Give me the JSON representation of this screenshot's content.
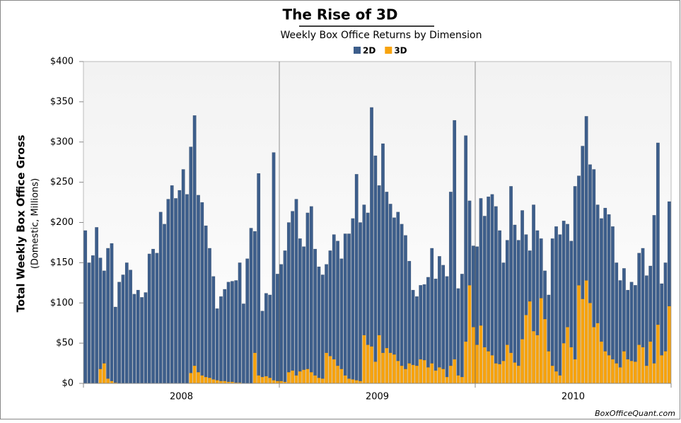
{
  "chart_data": {
    "type": "stacked_bar",
    "title": "The Rise of 3D",
    "subtitle": "Weekly Box Office Returns by Dimension",
    "y_label": "Total Weekly Box Office Gross",
    "y_sublabel": "(Domestic, Millions)",
    "credit": "BoxOfficeQuant.com",
    "x_group_labels": [
      "2008",
      "2009",
      "2010"
    ],
    "categories": [
      null,
      null,
      null,
      null,
      null,
      null,
      null,
      null,
      null,
      null,
      null,
      null,
      null,
      null,
      null,
      null,
      null,
      null,
      null,
      null,
      null,
      null,
      null,
      null,
      null,
      null,
      null,
      null,
      null,
      null,
      null,
      null,
      null,
      null,
      null,
      null,
      null,
      null,
      null,
      null,
      null,
      null,
      null,
      null,
      null,
      null,
      null,
      null,
      null,
      null,
      null,
      null,
      null,
      null,
      null,
      null,
      null,
      null,
      null,
      null,
      null,
      null,
      null,
      null,
      null,
      null,
      null,
      null,
      null,
      null,
      null,
      null,
      null,
      null,
      null,
      null,
      null,
      null,
      null,
      null,
      null,
      null,
      null,
      null,
      null,
      null,
      null,
      null,
      null,
      null,
      null,
      null,
      null,
      null,
      null,
      null,
      null,
      null,
      null,
      null,
      null,
      null,
      null,
      null,
      null,
      null,
      null,
      null,
      null,
      null,
      null,
      null,
      null,
      null,
      null,
      null,
      null,
      null,
      null,
      null,
      null,
      null,
      null,
      null,
      null,
      null,
      null,
      null,
      null,
      null,
      null,
      null,
      null,
      null,
      null,
      null,
      null,
      null,
      null,
      null,
      null,
      null,
      null,
      null,
      null,
      null,
      null,
      null,
      null,
      null,
      null,
      null,
      null,
      null,
      null,
      null
    ],
    "series": [
      {
        "name": "2D",
        "color": "#3d5e8b",
        "values": [
          190,
          150,
          159,
          194,
          138,
          115,
          162,
          171,
          94,
          126,
          135,
          150,
          141,
          111,
          116,
          107,
          113,
          161,
          167,
          162,
          213,
          198,
          229,
          246,
          230,
          240,
          266,
          235,
          281,
          311,
          220,
          215,
          188,
          161,
          128,
          89,
          105,
          114,
          124,
          125,
          127,
          149,
          99,
          155,
          193,
          151,
          251,
          82,
          103,
          103,
          283,
          133,
          145,
          163,
          186,
          198,
          219,
          165,
          153,
          194,
          206,
          157,
          138,
          129,
          110,
          131,
          155,
          155,
          137,
          176,
          180,
          200,
          256,
          197,
          162,
          164,
          297,
          256,
          186,
          260,
          194,
          185,
          170,
          185,
          176,
          166,
          127,
          93,
          86,
          92,
          94,
          112,
          143,
          114,
          138,
          129,
          125,
          216,
          297,
          108,
          128,
          256,
          105,
          101,
          122,
          158,
          163,
          192,
          200,
          195,
          166,
          122,
          130,
          207,
          171,
          156,
          160,
          100,
          63,
          157,
          130,
          74,
          60,
          70,
          158,
          180,
          175,
          152,
          128,
          132,
          215,
          136,
          190,
          204,
          172,
          196,
          147,
          153,
          178,
          175,
          165,
          125,
          108,
          103,
          86,
          98,
          95,
          114,
          123,
          112,
          94,
          184,
          226,
          89,
          110,
          130
        ]
      },
      {
        "name": "3D",
        "color": "#f7a30e",
        "values": [
          0,
          0,
          0,
          0,
          18,
          25,
          6,
          3,
          1,
          0,
          0,
          0,
          0,
          0,
          0,
          0,
          0,
          0,
          0,
          0,
          0,
          0,
          0,
          0,
          0,
          0,
          0,
          0,
          13,
          22,
          14,
          10,
          8,
          7,
          5,
          4,
          3,
          3,
          2,
          2,
          1,
          1,
          0,
          0,
          0,
          38,
          10,
          8,
          9,
          7,
          4,
          3,
          3,
          2,
          14,
          16,
          10,
          15,
          17,
          18,
          14,
          10,
          7,
          6,
          38,
          34,
          30,
          22,
          18,
          10,
          6,
          5,
          4,
          3,
          60,
          48,
          46,
          27,
          60,
          38,
          44,
          38,
          36,
          28,
          22,
          18,
          25,
          23,
          22,
          30,
          29,
          20,
          25,
          16,
          20,
          18,
          8,
          22,
          30,
          10,
          8,
          52,
          122,
          70,
          48,
          72,
          45,
          40,
          35,
          25,
          24,
          28,
          48,
          38,
          26,
          22,
          55,
          85,
          102,
          65,
          60,
          106,
          80,
          40,
          22,
          15,
          10,
          50,
          70,
          45,
          30,
          122,
          105,
          128,
          100,
          70,
          75,
          52,
          40,
          35,
          30,
          25,
          20,
          40,
          30,
          28,
          27,
          48,
          45,
          22,
          52,
          25,
          73,
          35,
          40,
          96
        ]
      }
    ],
    "ylim": [
      0,
      400
    ],
    "yticks": [
      {
        "value": 0,
        "label": "$0"
      },
      {
        "value": 50,
        "label": "$50"
      },
      {
        "value": 100,
        "label": "$100"
      },
      {
        "value": 150,
        "label": "$150"
      },
      {
        "value": 200,
        "label": "$200"
      },
      {
        "value": 250,
        "label": "$250"
      },
      {
        "value": 300,
        "label": "$300"
      },
      {
        "value": 350,
        "label": "$350"
      },
      {
        "value": 400,
        "label": "$400"
      }
    ],
    "grid": true
  }
}
